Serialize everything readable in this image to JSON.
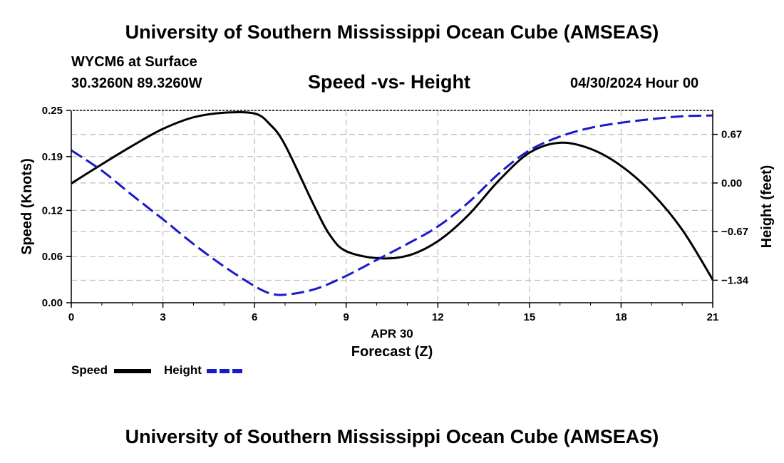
{
  "header": {
    "title": "University of Southern Mississippi Ocean Cube (AMSEAS)",
    "station": "WYCM6 at Surface",
    "coords": "30.3260N  89.3260W",
    "subtitle": "Speed -vs- Height",
    "datetime": "04/30/2024 Hour 00"
  },
  "footer": {
    "title": "University of Southern Mississippi Ocean Cube (AMSEAS)"
  },
  "chart_data": {
    "type": "line",
    "title": "Speed -vs- Height",
    "xlabel_date": "APR 30",
    "xlabel": "Forecast (Z)",
    "ylabel": "Speed (Knots)",
    "ylabel_right": "Height (feet)",
    "xlim": [
      0,
      21
    ],
    "ylim": [
      0,
      0.25
    ],
    "ylim_right": [
      -1.65,
      1.0
    ],
    "x_ticks": [
      "0",
      "3",
      "6",
      "9",
      "12",
      "15",
      "18",
      "21"
    ],
    "y_ticks": [
      "0.00",
      "0.06",
      "0.12",
      "0.19",
      "0.25"
    ],
    "y_ticks_right": [
      "−1.34",
      "−0.67",
      "0.00",
      "0.67"
    ],
    "grid": true,
    "colors": {
      "speed": "#000000",
      "height": "#1a1acc",
      "grid": "#bbbbbb"
    },
    "series": [
      {
        "name": "Speed",
        "axis": "left",
        "style": "solid",
        "x": [
          0,
          1,
          2,
          3,
          4,
          5,
          6,
          6.5,
          7,
          8,
          8.5,
          9,
          10,
          11,
          12,
          13,
          14,
          15,
          16,
          17,
          18,
          19,
          20,
          21
        ],
        "values": [
          0.155,
          0.18,
          0.204,
          0.226,
          0.241,
          0.247,
          0.246,
          0.232,
          0.205,
          0.122,
          0.086,
          0.067,
          0.058,
          0.061,
          0.08,
          0.114,
          0.159,
          0.195,
          0.208,
          0.2,
          0.178,
          0.143,
          0.095,
          0.03
        ]
      },
      {
        "name": "Height",
        "axis": "right",
        "style": "dashed",
        "x": [
          0,
          1,
          2,
          3,
          4,
          5,
          6,
          6.5,
          7,
          8,
          9,
          10,
          11,
          12,
          13,
          14,
          15,
          16,
          17,
          18,
          19,
          20,
          21
        ],
        "values": [
          0.45,
          0.17,
          -0.17,
          -0.5,
          -0.84,
          -1.15,
          -1.42,
          -1.52,
          -1.54,
          -1.46,
          -1.28,
          -1.06,
          -0.84,
          -0.6,
          -0.27,
          0.13,
          0.45,
          0.64,
          0.76,
          0.83,
          0.88,
          0.92,
          0.93
        ]
      }
    ],
    "legend": [
      {
        "label": "Speed"
      },
      {
        "label": "Height"
      }
    ]
  }
}
